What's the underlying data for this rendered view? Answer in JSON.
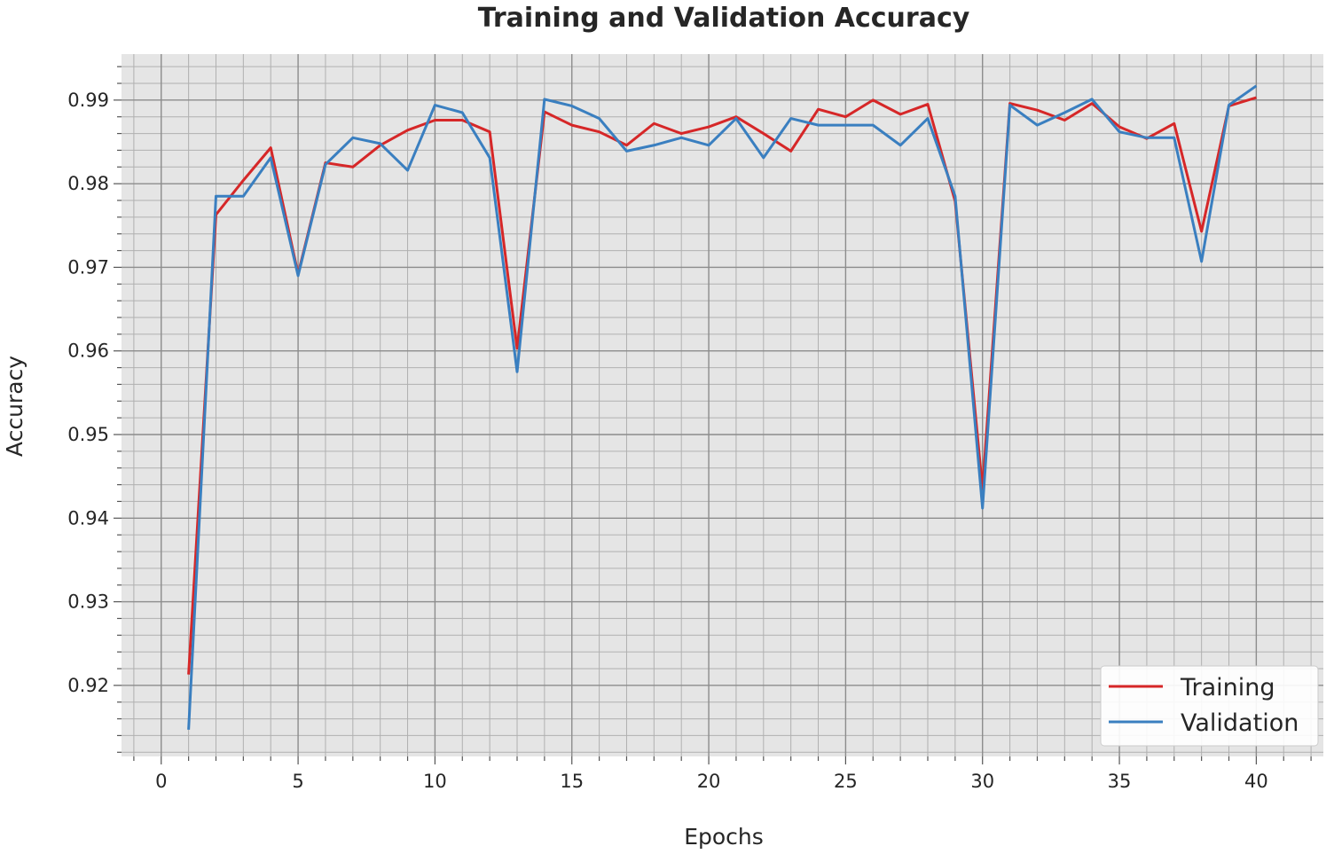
{
  "chart_data": {
    "type": "line",
    "title": "Training and Validation Accuracy",
    "xlabel": "Epochs",
    "ylabel": "Accuracy",
    "xlim": [
      -1.45,
      42.45
    ],
    "ylim": [
      0.9115,
      0.9955
    ],
    "xticks": [
      0,
      5,
      10,
      15,
      20,
      25,
      30,
      35,
      40
    ],
    "yticks": [
      0.92,
      0.93,
      0.94,
      0.95,
      0.96,
      0.97,
      0.98,
      0.99
    ],
    "xtick_labels": [
      "0",
      "5",
      "10",
      "15",
      "20",
      "25",
      "30",
      "35",
      "40"
    ],
    "ytick_labels": [
      "0.92",
      "0.93",
      "0.94",
      "0.95",
      "0.96",
      "0.97",
      "0.98",
      "0.99"
    ],
    "grid": true,
    "legend_position": "bottom-right",
    "background": "#e5e5e5",
    "x": [
      1,
      2,
      3,
      4,
      5,
      6,
      7,
      8,
      9,
      10,
      11,
      12,
      13,
      14,
      15,
      16,
      17,
      18,
      19,
      20,
      21,
      22,
      23,
      24,
      25,
      26,
      27,
      28,
      29,
      30,
      31,
      32,
      33,
      34,
      35,
      36,
      37,
      38,
      39,
      40
    ],
    "series": [
      {
        "name": "Training",
        "color": "#d62728",
        "values": [
          0.9213,
          0.9763,
          0.9804,
          0.9843,
          0.9692,
          0.9825,
          0.982,
          0.9846,
          0.9864,
          0.9876,
          0.9876,
          0.9862,
          0.9603,
          0.9886,
          0.987,
          0.9862,
          0.9846,
          0.9872,
          0.986,
          0.9868,
          0.988,
          0.986,
          0.9839,
          0.9889,
          0.988,
          0.99,
          0.9883,
          0.9895,
          0.9779,
          0.9435,
          0.9896,
          0.9888,
          0.9876,
          0.9896,
          0.9868,
          0.9854,
          0.9872,
          0.9743,
          0.9893,
          0.9903
        ]
      },
      {
        "name": "Validation",
        "color": "#3a7fc0",
        "values": [
          0.9147,
          0.9785,
          0.9785,
          0.9831,
          0.969,
          0.9823,
          0.9855,
          0.9848,
          0.9816,
          0.9894,
          0.9885,
          0.9831,
          0.9575,
          0.9901,
          0.9893,
          0.9878,
          0.9839,
          0.9846,
          0.9855,
          0.9846,
          0.9878,
          0.9831,
          0.9878,
          0.987,
          0.987,
          0.987,
          0.9846,
          0.9878,
          0.9785,
          0.9412,
          0.9894,
          0.987,
          0.9885,
          0.9901,
          0.9862,
          0.9855,
          0.9855,
          0.9707,
          0.9894,
          0.9917
        ]
      }
    ]
  }
}
